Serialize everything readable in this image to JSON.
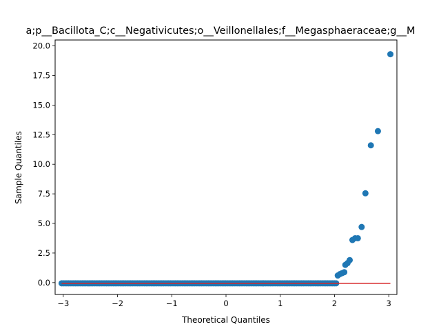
{
  "chart_data": {
    "type": "scatter",
    "title": "a;p__Bacillota_C;c__Negativicutes;o__Veillonellales;f__Megasphaeraceae;g__M",
    "xlabel": "Theoretical Quantiles",
    "ylabel": "Sample Quantiles",
    "xlim": [
      -3.15,
      3.15
    ],
    "ylim": [
      -1.0,
      20.5
    ],
    "xticks": [
      -3,
      -2,
      -1,
      0,
      1,
      2,
      3
    ],
    "xtick_labels": [
      "−3",
      "−2",
      "−1",
      "0",
      "1",
      "2",
      "3"
    ],
    "yticks": [
      0.0,
      2.5,
      5.0,
      7.5,
      10.0,
      12.5,
      15.0,
      17.5,
      20.0
    ],
    "ytick_labels": [
      "0.0",
      "2.5",
      "5.0",
      "7.5",
      "10.0",
      "12.5",
      "15.0",
      "17.5",
      "20.0"
    ],
    "grid": false,
    "point_color": "#1f77b4",
    "line_color": "#d62728",
    "reference_line": {
      "x": [
        -3.03,
        3.03
      ],
      "y": [
        -0.06,
        -0.06
      ]
    },
    "baseline": {
      "x_from": -3.03,
      "x_to": 2.03,
      "y": -0.06,
      "count": 160
    },
    "points": [
      {
        "x": 2.06,
        "y": 0.6
      },
      {
        "x": 2.1,
        "y": 0.72
      },
      {
        "x": 2.14,
        "y": 0.8
      },
      {
        "x": 2.18,
        "y": 0.88
      },
      {
        "x": 2.2,
        "y": 1.5
      },
      {
        "x": 2.24,
        "y": 1.65
      },
      {
        "x": 2.28,
        "y": 1.9
      },
      {
        "x": 2.33,
        "y": 3.6
      },
      {
        "x": 2.38,
        "y": 3.75
      },
      {
        "x": 2.43,
        "y": 3.75
      },
      {
        "x": 2.5,
        "y": 4.7
      },
      {
        "x": 2.57,
        "y": 7.55
      },
      {
        "x": 2.67,
        "y": 11.6
      },
      {
        "x": 2.8,
        "y": 12.8
      },
      {
        "x": 3.03,
        "y": 19.3
      }
    ]
  }
}
